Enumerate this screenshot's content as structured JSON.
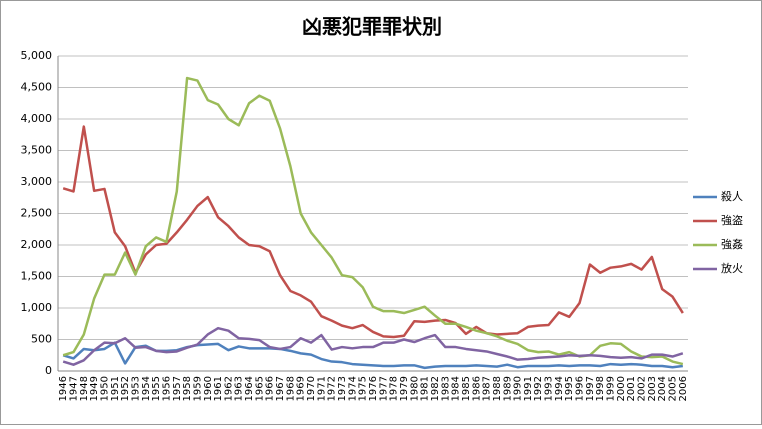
{
  "chart_data": {
    "type": "line",
    "title": "凶悪犯罪罪状別",
    "categories": [
      "1946",
      "1947",
      "1948",
      "1949",
      "1950",
      "1951",
      "1952",
      "1953",
      "1954",
      "1955",
      "1956",
      "1957",
      "1958",
      "1959",
      "1960",
      "1961",
      "1962",
      "1963",
      "1964",
      "1965",
      "1966",
      "1967",
      "1968",
      "1969",
      "1970",
      "1971",
      "1972",
      "1973",
      "1974",
      "1975",
      "1976",
      "1977",
      "1978",
      "1979",
      "1980",
      "1981",
      "1982",
      "1983",
      "1984",
      "1985",
      "1986",
      "1987",
      "1988",
      "1989",
      "1990",
      "1991",
      "1992",
      "1993",
      "1994",
      "1995",
      "1996",
      "1997",
      "1998",
      "1999",
      "2000",
      "2001",
      "2002",
      "2003",
      "2004",
      "2005",
      "2006"
    ],
    "series": [
      {
        "name": "殺人",
        "color": "#4f81bd",
        "values": [
          250,
          200,
          350,
          330,
          350,
          450,
          120,
          380,
          400,
          320,
          320,
          330,
          380,
          410,
          420,
          430,
          330,
          390,
          360,
          360,
          360,
          350,
          320,
          280,
          260,
          190,
          150,
          140,
          110,
          100,
          90,
          80,
          80,
          90,
          90,
          50,
          70,
          80,
          80,
          80,
          90,
          80,
          70,
          100,
          60,
          80,
          80,
          80,
          90,
          80,
          90,
          90,
          80,
          110,
          100,
          110,
          100,
          80,
          80,
          60,
          80
        ]
      },
      {
        "name": "強盗",
        "color": "#c0504d",
        "values": [
          2900,
          2850,
          3880,
          2860,
          2890,
          2200,
          1980,
          1560,
          1850,
          2000,
          2020,
          2200,
          2400,
          2620,
          2760,
          2440,
          2300,
          2120,
          2000,
          1980,
          1900,
          1520,
          1270,
          1200,
          1100,
          870,
          800,
          720,
          680,
          730,
          620,
          550,
          540,
          560,
          790,
          780,
          800,
          810,
          760,
          590,
          700,
          600,
          580,
          590,
          600,
          700,
          720,
          730,
          930,
          860,
          1080,
          1690,
          1560,
          1640,
          1660,
          1700,
          1610,
          1810,
          1300,
          1180,
          920
        ]
      },
      {
        "name": "強姦",
        "color": "#9bbb59",
        "values": [
          250,
          300,
          580,
          1150,
          1530,
          1530,
          1880,
          1530,
          1980,
          2120,
          2050,
          2850,
          4650,
          4610,
          4300,
          4230,
          4000,
          3900,
          4250,
          4370,
          4290,
          3850,
          3250,
          2500,
          2200,
          2000,
          1800,
          1520,
          1490,
          1330,
          1020,
          950,
          950,
          920,
          970,
          1020,
          880,
          750,
          750,
          700,
          640,
          600,
          550,
          480,
          430,
          330,
          300,
          310,
          260,
          300,
          230,
          250,
          400,
          440,
          430,
          310,
          230,
          220,
          230,
          150,
          110
        ]
      },
      {
        "name": "放火",
        "color": "#8064a2",
        "values": [
          150,
          100,
          170,
          330,
          450,
          440,
          520,
          370,
          380,
          320,
          300,
          310,
          370,
          420,
          580,
          680,
          640,
          520,
          510,
          490,
          380,
          350,
          380,
          520,
          450,
          570,
          340,
          380,
          360,
          380,
          380,
          450,
          450,
          500,
          460,
          520,
          570,
          380,
          380,
          350,
          330,
          310,
          270,
          230,
          180,
          190,
          210,
          220,
          230,
          250,
          240,
          250,
          240,
          220,
          210,
          220,
          200,
          260,
          260,
          230,
          280
        ]
      }
    ],
    "ylim": [
      0,
      5000
    ],
    "yticks": [
      0,
      500,
      {
        "value": 1000,
        "label": "1,000"
      },
      {
        "value": 1500,
        "label": "1,500"
      },
      {
        "value": 2000,
        "label": "2,000"
      },
      {
        "value": 2500,
        "label": "2,500"
      },
      {
        "value": 3000,
        "label": "3,000"
      },
      {
        "value": 3500,
        "label": "3,500"
      },
      {
        "value": 4000,
        "label": "4,000"
      },
      {
        "value": 4500,
        "label": "4,500"
      },
      {
        "value": 5000,
        "label": "5,000"
      }
    ],
    "grid": true,
    "legend": "right"
  }
}
